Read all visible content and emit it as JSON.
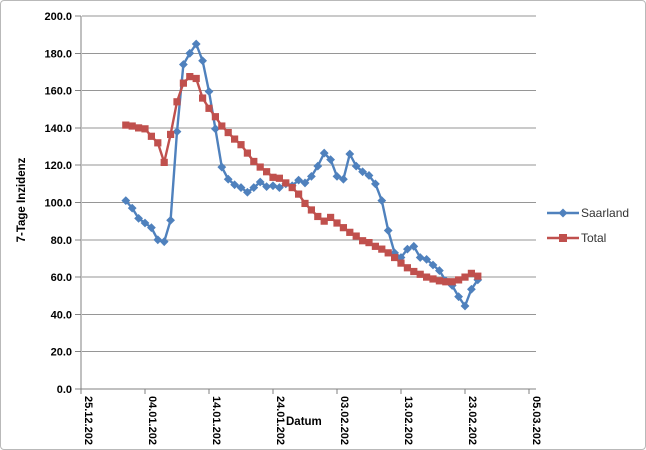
{
  "chart_data": {
    "type": "line",
    "title": "",
    "xlabel": "Datum",
    "ylabel": "7-Tage Inzidenz",
    "ylim": [
      0,
      200
    ],
    "y_tick_step": 20,
    "y_tick_labels": [
      "0.0",
      "20.0",
      "40.0",
      "60.0",
      "80.0",
      "100.0",
      "120.0",
      "140.0",
      "160.0",
      "180.0",
      "200.0"
    ],
    "x_tick_labels": [
      "25.12.202",
      "04.01.202",
      "14.01.202",
      "24.01.202",
      "03.02.202",
      "13.02.202",
      "23.02.202",
      "05.03.202"
    ],
    "x_tick_days": [
      0,
      10,
      20,
      30,
      40,
      50,
      60,
      70
    ],
    "x_axis_start": "25.12.2020",
    "x_axis_end": "05.03.2021",
    "grid": "horizontal-major",
    "legend_position": "right",
    "start_day_offset": 7,
    "dates": [
      "01.01.2021",
      "02.01.2021",
      "03.01.2021",
      "04.01.2021",
      "05.01.2021",
      "06.01.2021",
      "07.01.2021",
      "08.01.2021",
      "09.01.2021",
      "10.01.2021",
      "11.01.2021",
      "12.01.2021",
      "13.01.2021",
      "14.01.2021",
      "15.01.2021",
      "16.01.2021",
      "17.01.2021",
      "18.01.2021",
      "19.01.2021",
      "20.01.2021",
      "21.01.2021",
      "22.01.2021",
      "23.01.2021",
      "24.01.2021",
      "25.01.2021",
      "26.01.2021",
      "27.01.2021",
      "28.01.2021",
      "29.01.2021",
      "30.01.2021",
      "31.01.2021",
      "01.02.2021",
      "02.02.2021",
      "03.02.2021",
      "04.02.2021",
      "05.02.2021",
      "06.02.2021",
      "07.02.2021",
      "08.02.2021",
      "09.02.2021",
      "10.02.2021",
      "11.02.2021",
      "12.02.2021",
      "13.02.2021",
      "14.02.2021",
      "15.02.2021",
      "16.02.2021",
      "17.02.2021",
      "18.02.2021",
      "19.02.2021",
      "20.02.2021",
      "21.02.2021",
      "22.02.2021",
      "23.02.2021",
      "24.02.2021",
      "25.02.2021"
    ],
    "series": [
      {
        "name": "Saarland",
        "color": "#4F81BD",
        "marker": "diamond",
        "values": [
          101,
          97,
          91.5,
          89,
          86.5,
          80,
          79,
          90.5,
          138,
          174,
          180,
          185,
          176,
          159.5,
          139.5,
          119,
          112.5,
          109.5,
          108,
          105.5,
          108,
          111,
          108.5,
          109,
          108,
          110,
          109,
          112,
          110.5,
          114,
          119.5,
          126.5,
          123,
          114,
          112.5,
          126,
          119.5,
          116.5,
          114.5,
          110,
          101,
          85,
          73,
          70.5,
          75,
          76.5,
          70.5,
          69.5,
          66.5,
          63.5,
          58,
          55.5,
          49.5,
          44.5,
          53.5,
          58.5
        ]
      },
      {
        "name": "Total",
        "color": "#C0504D",
        "marker": "square",
        "values": [
          141.5,
          141,
          140,
          139.5,
          135.5,
          132,
          121.5,
          136.5,
          154,
          164,
          167.5,
          166.5,
          156,
          150.5,
          146,
          141,
          137.5,
          134,
          131,
          126.5,
          122,
          119,
          116.5,
          113.5,
          113,
          110.5,
          108,
          104.5,
          99.5,
          96,
          92.5,
          90,
          92,
          89,
          86.5,
          84,
          82,
          79.5,
          78.5,
          76.5,
          75,
          73,
          70.5,
          67.5,
          65,
          63,
          61.5,
          60,
          59,
          58,
          57.5,
          57.5,
          58.5,
          60,
          62,
          60.5
        ]
      }
    ],
    "colors": {
      "gridline": "#969696",
      "axis": "#808080",
      "saarland": "#4F81BD",
      "total": "#C0504D"
    }
  }
}
